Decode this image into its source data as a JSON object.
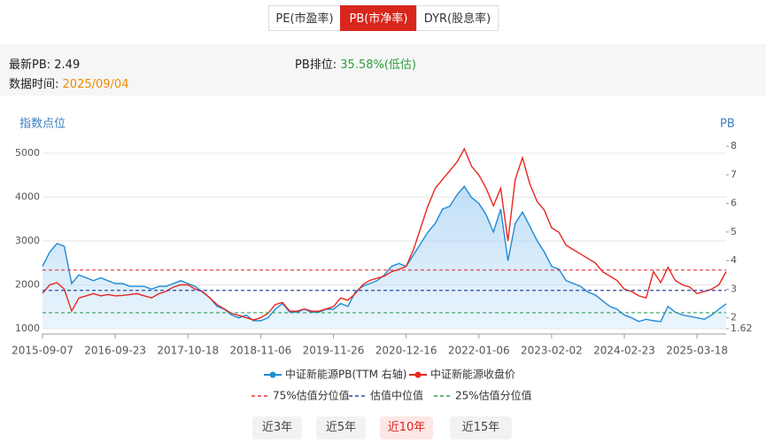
{
  "tabs": [
    "PE(市盈率)",
    "PB(市净率)",
    "DYR(股息率)"
  ],
  "active_tab": 1,
  "info": {
    "latest_pb_label": "最新PB:",
    "latest_pb": 2.49,
    "rank_label": "PB排位:",
    "rank": "35.58%(低估)",
    "date_label": "数据时间:",
    "date": "2025/09/04"
  },
  "chart_data": {
    "type": "line",
    "y_axis_title": "指数点位",
    "y2_axis_title": "PB",
    "categories": [
      "2015-09-07",
      null,
      null,
      null,
      null,
      null,
      null,
      null,
      null,
      null,
      "2016-09-23",
      null,
      null,
      null,
      null,
      null,
      null,
      null,
      null,
      null,
      "2017-10-18",
      null,
      null,
      null,
      null,
      null,
      null,
      null,
      null,
      null,
      "2018-11-06",
      null,
      null,
      null,
      null,
      null,
      null,
      null,
      null,
      null,
      "2019-11-26",
      null,
      null,
      null,
      null,
      null,
      null,
      null,
      null,
      null,
      "2020-12-16",
      null,
      null,
      null,
      null,
      null,
      null,
      null,
      null,
      null,
      "2022-01-06",
      null,
      null,
      null,
      null,
      null,
      null,
      null,
      null,
      null,
      "2023-02-02",
      null,
      null,
      null,
      null,
      null,
      null,
      null,
      null,
      null,
      "2024-02-23",
      null,
      null,
      null,
      null,
      null,
      null,
      null,
      null,
      null,
      "2025-03-18",
      null,
      null,
      null,
      null
    ],
    "series": [
      {
        "name": "中证新能源PB(TTM 右轴)",
        "color": "#1f8ad6",
        "axis": "y2",
        "area": true,
        "values": [
          3.8,
          4.3,
          4.6,
          4.5,
          3.2,
          3.5,
          3.4,
          3.3,
          3.4,
          3.3,
          3.2,
          3.2,
          3.1,
          3.1,
          3.1,
          3.0,
          3.1,
          3.1,
          3.2,
          3.3,
          3.2,
          3.1,
          2.9,
          2.7,
          2.4,
          2.3,
          2.1,
          2.0,
          2.1,
          1.9,
          1.9,
          2.0,
          2.3,
          2.5,
          2.2,
          2.2,
          2.3,
          2.2,
          2.2,
          2.3,
          2.3,
          2.5,
          2.4,
          2.9,
          3.1,
          3.2,
          3.3,
          3.5,
          3.8,
          3.9,
          3.8,
          4.2,
          4.6,
          5.0,
          5.3,
          5.8,
          5.9,
          6.3,
          6.6,
          6.2,
          6.0,
          5.6,
          5.0,
          5.8,
          4.0,
          5.3,
          5.7,
          5.2,
          4.7,
          4.3,
          3.8,
          3.7,
          3.3,
          3.2,
          3.1,
          2.9,
          2.8,
          2.6,
          2.4,
          2.3,
          2.1,
          2.0,
          1.87,
          1.95,
          1.9,
          1.87,
          2.4,
          2.2,
          2.1,
          2.05,
          2.0,
          1.95,
          2.1,
          2.3,
          2.49
        ]
      },
      {
        "name": "中证新能源收盘价",
        "color": "#e8261f",
        "values": [
          1810,
          2000,
          2050,
          1900,
          1400,
          1700,
          1750,
          1800,
          1750,
          1780,
          1750,
          1760,
          1780,
          1800,
          1750,
          1700,
          1800,
          1850,
          1950,
          2000,
          2000,
          1900,
          1850,
          1700,
          1550,
          1450,
          1350,
          1300,
          1250,
          1200,
          1250,
          1350,
          1550,
          1600,
          1400,
          1400,
          1450,
          1400,
          1400,
          1450,
          1500,
          1700,
          1650,
          1800,
          2000,
          2100,
          2150,
          2200,
          2300,
          2350,
          2420,
          2800,
          3300,
          3800,
          4200,
          4400,
          4600,
          4800,
          5100,
          4700,
          4500,
          4200,
          3800,
          4200,
          3000,
          4400,
          4900,
          4300,
          3900,
          3700,
          3300,
          3200,
          2900,
          2800,
          2700,
          2600,
          2500,
          2300,
          2200,
          2100,
          1900,
          1850,
          1750,
          1700,
          2300,
          2050,
          2400,
          2100,
          2000,
          1950,
          1800,
          1850,
          1900,
          2000,
          2300
        ]
      }
    ],
    "reference_lines": [
      {
        "name": "75%估值分位值",
        "value": 3.67,
        "color": "#e0393e",
        "axis": "y2"
      },
      {
        "name": "估值中位值",
        "value": 2.96,
        "color": "#2b4b9b",
        "axis": "y2"
      },
      {
        "name": "25%估值分位值",
        "value": 2.18,
        "color": "#2e9e5e",
        "axis": "y2"
      }
    ],
    "ylim": [
      1000,
      5160
    ],
    "yticks": [
      1000,
      2000,
      3000,
      4000,
      5000
    ],
    "y2lim": [
      1.62,
      8
    ],
    "y2ticks": [
      1.62,
      2,
      3,
      4,
      5,
      6,
      7,
      8
    ],
    "grid": true
  },
  "ranges": {
    "buttons": [
      "近3年",
      "近5年",
      "近10年",
      "近15年"
    ],
    "active": 2
  }
}
